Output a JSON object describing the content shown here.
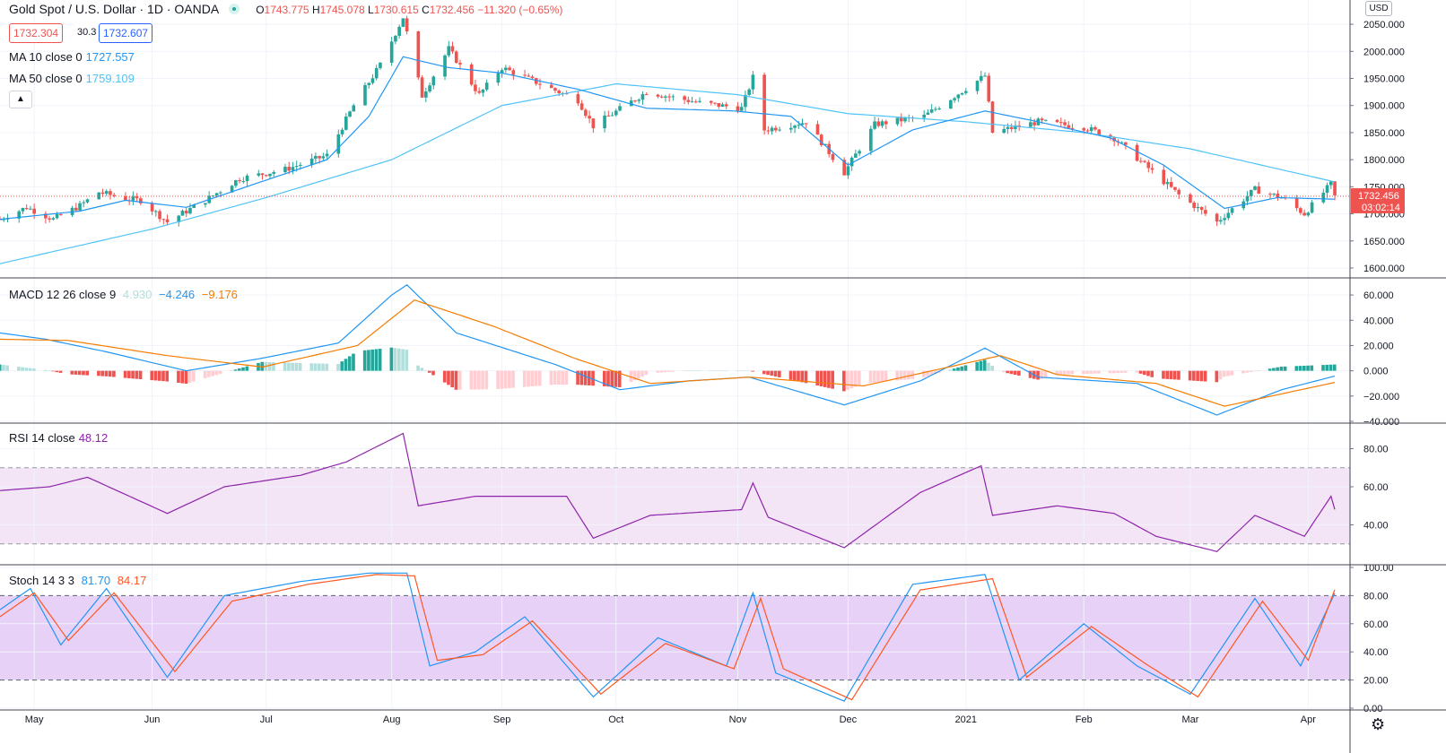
{
  "header": {
    "symbol": "Gold Spot / U.S. Dollar · 1D · OANDA",
    "open_label": "O",
    "open": "1743.775",
    "high_label": "H",
    "high": "1745.078",
    "low_label": "L",
    "low": "1730.615",
    "close_label": "C",
    "close": "1732.456",
    "change": "−11.320 (−0.65%)",
    "bid": "1732.304",
    "spread": "30.3",
    "ask": "1732.607",
    "currency": "USD",
    "countdown": "03:02:14"
  },
  "colors": {
    "up": "#26a69a",
    "down": "#ef5350",
    "ma10": "#2196f3",
    "ma50": "#4fc3f7",
    "macd": "#2196f3",
    "signal": "#f57c00",
    "rsi": "#8e24aa",
    "stochK": "#2196f3",
    "stochD": "#ff5722"
  },
  "indicators": {
    "ma10": {
      "label": "MA 10 close 0",
      "value": "1727.557"
    },
    "ma50": {
      "label": "MA 50 close 0",
      "value": "1759.109"
    },
    "macd": {
      "label": "MACD 12 26 close 9",
      "hist": "4.930",
      "macd": "−4.246",
      "signal": "−9.176"
    },
    "rsi": {
      "label": "RSI 14 close",
      "value": "48.12"
    },
    "stoch": {
      "label": "Stoch 14 3 3",
      "k": "81.70",
      "d": "84.17"
    }
  },
  "chart_data": {
    "type": "candlestick",
    "x_ticks": [
      "May",
      "Jun",
      "Jul",
      "Aug",
      "Sep",
      "Oct",
      "Nov",
      "Dec",
      "2021",
      "Feb",
      "Mar",
      "Apr"
    ],
    "x_tick_dates": [
      "2020-05-01",
      "2020-06-01",
      "2020-07-01",
      "2020-08-03",
      "2020-09-01",
      "2020-10-01",
      "2020-11-02",
      "2020-12-01",
      "2021-01-01",
      "2021-02-01",
      "2021-03-01",
      "2021-04-01"
    ],
    "x_range": [
      "2020-04-22",
      "2021-04-12"
    ],
    "last_price": 1732.456,
    "last_date": "2021-04-08",
    "price_panel": {
      "ylim": [
        1590,
        2070
      ],
      "yticks": [
        "1600.000",
        "1650.000",
        "1700.000",
        "1750.000",
        "1800.000",
        "1850.000",
        "1900.000",
        "1950.000",
        "2000.000",
        "2050.000"
      ]
    },
    "price_path": [
      [
        "2020-04-22",
        1690
      ],
      [
        "2020-04-29",
        1712
      ],
      [
        "2020-05-06",
        1690
      ],
      [
        "2020-05-13",
        1715
      ],
      [
        "2020-05-18",
        1740
      ],
      [
        "2020-05-25",
        1728
      ],
      [
        "2020-05-29",
        1725
      ],
      [
        "2020-06-05",
        1685
      ],
      [
        "2020-06-15",
        1725
      ],
      [
        "2020-06-24",
        1765
      ],
      [
        "2020-07-06",
        1782
      ],
      [
        "2020-07-17",
        1808
      ],
      [
        "2020-07-24",
        1900
      ],
      [
        "2020-07-31",
        1975
      ],
      [
        "2020-08-06",
        2063
      ],
      [
        "2020-08-11",
        1918
      ],
      [
        "2020-08-18",
        2005
      ],
      [
        "2020-08-26",
        1920
      ],
      [
        "2020-09-01",
        1970
      ],
      [
        "2020-09-11",
        1940
      ],
      [
        "2020-09-21",
        1910
      ],
      [
        "2020-09-25",
        1862
      ],
      [
        "2020-10-09",
        1925
      ],
      [
        "2020-10-23",
        1905
      ],
      [
        "2020-11-03",
        1895
      ],
      [
        "2020-11-06",
        1952
      ],
      [
        "2020-11-09",
        1855
      ],
      [
        "2020-11-20",
        1870
      ],
      [
        "2020-11-30",
        1776
      ],
      [
        "2020-12-08",
        1865
      ],
      [
        "2020-12-21",
        1880
      ],
      [
        "2021-01-06",
        1955
      ],
      [
        "2021-01-08",
        1850
      ],
      [
        "2021-01-20",
        1870
      ],
      [
        "2021-02-01",
        1860
      ],
      [
        "2021-02-09",
        1840
      ],
      [
        "2021-02-26",
        1735
      ],
      [
        "2021-03-08",
        1685
      ],
      [
        "2021-03-18",
        1745
      ],
      [
        "2021-03-25",
        1730
      ],
      [
        "2021-03-31",
        1700
      ],
      [
        "2021-04-07",
        1755
      ],
      [
        "2021-04-08",
        1732
      ]
    ],
    "ma10": [
      [
        "2020-04-22",
        1690
      ],
      [
        "2020-05-13",
        1705
      ],
      [
        "2020-05-25",
        1725
      ],
      [
        "2020-06-10",
        1712
      ],
      [
        "2020-06-30",
        1760
      ],
      [
        "2020-07-17",
        1800
      ],
      [
        "2020-07-28",
        1880
      ],
      [
        "2020-08-06",
        1990
      ],
      [
        "2020-08-18",
        1970
      ],
      [
        "2020-09-01",
        1960
      ],
      [
        "2020-09-21",
        1930
      ],
      [
        "2020-10-09",
        1895
      ],
      [
        "2020-11-01",
        1890
      ],
      [
        "2020-11-16",
        1880
      ],
      [
        "2020-12-01",
        1790
      ],
      [
        "2020-12-18",
        1855
      ],
      [
        "2021-01-06",
        1890
      ],
      [
        "2021-01-20",
        1870
      ],
      [
        "2021-02-08",
        1840
      ],
      [
        "2021-02-22",
        1790
      ],
      [
        "2021-03-10",
        1710
      ],
      [
        "2021-03-24",
        1730
      ],
      [
        "2021-04-08",
        1727
      ]
    ],
    "ma50": [
      [
        "2020-04-22",
        1608
      ],
      [
        "2020-06-01",
        1672
      ],
      [
        "2020-07-01",
        1730
      ],
      [
        "2020-08-03",
        1800
      ],
      [
        "2020-09-01",
        1900
      ],
      [
        "2020-10-01",
        1940
      ],
      [
        "2020-11-02",
        1920
      ],
      [
        "2020-12-01",
        1885
      ],
      [
        "2021-01-01",
        1870
      ],
      [
        "2021-02-01",
        1850
      ],
      [
        "2021-03-01",
        1820
      ],
      [
        "2021-04-08",
        1759
      ]
    ],
    "macd_panel": {
      "ylim": [
        -40000,
        70000
      ],
      "yticks": [
        "−40.000",
        "−20.000",
        "0.000",
        "20.000",
        "40.000",
        "60.000"
      ]
    },
    "macd": [
      [
        "2020-04-22",
        30
      ],
      [
        "2020-05-04",
        25
      ],
      [
        "2020-05-20",
        15
      ],
      [
        "2020-06-10",
        0
      ],
      [
        "2020-06-30",
        10
      ],
      [
        "2020-07-20",
        22
      ],
      [
        "2020-08-03",
        60
      ],
      [
        "2020-08-07",
        68
      ],
      [
        "2020-08-20",
        30
      ],
      [
        "2020-09-15",
        5
      ],
      [
        "2020-10-02",
        -15
      ],
      [
        "2020-10-20",
        -8
      ],
      [
        "2020-11-05",
        -5
      ],
      [
        "2020-11-30",
        -27
      ],
      [
        "2020-12-20",
        -8
      ],
      [
        "2021-01-06",
        18
      ],
      [
        "2021-01-20",
        -5
      ],
      [
        "2021-02-15",
        -10
      ],
      [
        "2021-03-08",
        -35
      ],
      [
        "2021-03-25",
        -15
      ],
      [
        "2021-04-08",
        -4.2
      ]
    ],
    "signal": [
      [
        "2020-04-22",
        25
      ],
      [
        "2020-05-10",
        24
      ],
      [
        "2020-06-05",
        12
      ],
      [
        "2020-06-30",
        3
      ],
      [
        "2020-07-25",
        20
      ],
      [
        "2020-08-09",
        56
      ],
      [
        "2020-08-30",
        35
      ],
      [
        "2020-09-20",
        10
      ],
      [
        "2020-10-10",
        -10
      ],
      [
        "2020-11-05",
        -5
      ],
      [
        "2020-12-05",
        -12
      ],
      [
        "2021-01-10",
        12
      ],
      [
        "2021-01-25",
        -3
      ],
      [
        "2021-02-20",
        -10
      ],
      [
        "2021-03-10",
        -28
      ],
      [
        "2021-04-08",
        -9.2
      ]
    ],
    "rsi_panel": {
      "ylim": [
        20,
        92
      ],
      "yticks": [
        "40.00",
        "60.00",
        "80.00"
      ],
      "bands": [
        30,
        70
      ]
    },
    "rsi": [
      [
        "2020-04-22",
        58
      ],
      [
        "2020-05-05",
        60
      ],
      [
        "2020-05-15",
        65
      ],
      [
        "2020-06-05",
        46
      ],
      [
        "2020-06-20",
        60
      ],
      [
        "2020-07-10",
        66
      ],
      [
        "2020-07-22",
        73
      ],
      [
        "2020-08-06",
        88
      ],
      [
        "2020-08-10",
        50
      ],
      [
        "2020-08-25",
        55
      ],
      [
        "2020-09-18",
        55
      ],
      [
        "2020-09-25",
        33
      ],
      [
        "2020-10-10",
        45
      ],
      [
        "2020-11-03",
        48
      ],
      [
        "2020-11-06",
        62
      ],
      [
        "2020-11-10",
        44
      ],
      [
        "2020-11-30",
        28
      ],
      [
        "2020-12-20",
        57
      ],
      [
        "2021-01-05",
        71
      ],
      [
        "2021-01-08",
        45
      ],
      [
        "2021-01-25",
        50
      ],
      [
        "2021-02-09",
        46
      ],
      [
        "2021-02-20",
        34
      ],
      [
        "2021-03-08",
        26
      ],
      [
        "2021-03-18",
        45
      ],
      [
        "2021-03-31",
        34
      ],
      [
        "2021-04-07",
        55
      ],
      [
        "2021-04-08",
        48.1
      ]
    ],
    "stoch_panel": {
      "ylim": [
        0,
        100
      ],
      "yticks": [
        "0.00",
        "20.00",
        "40.00",
        "60.00",
        "80.00",
        "100.00"
      ],
      "bands": [
        20,
        80
      ]
    },
    "stochK": [
      [
        "2020-04-22",
        70
      ],
      [
        "2020-04-30",
        85
      ],
      [
        "2020-05-08",
        45
      ],
      [
        "2020-05-20",
        85
      ],
      [
        "2020-06-05",
        22
      ],
      [
        "2020-06-20",
        80
      ],
      [
        "2020-07-10",
        90
      ],
      [
        "2020-07-28",
        96
      ],
      [
        "2020-08-07",
        96
      ],
      [
        "2020-08-13",
        30
      ],
      [
        "2020-08-25",
        40
      ],
      [
        "2020-09-07",
        65
      ],
      [
        "2020-09-25",
        8
      ],
      [
        "2020-10-12",
        50
      ],
      [
        "2020-10-30",
        30
      ],
      [
        "2020-11-06",
        82
      ],
      [
        "2020-11-12",
        25
      ],
      [
        "2020-11-30",
        5
      ],
      [
        "2020-12-18",
        88
      ],
      [
        "2021-01-06",
        95
      ],
      [
        "2021-01-15",
        20
      ],
      [
        "2021-02-01",
        60
      ],
      [
        "2021-02-15",
        30
      ],
      [
        "2021-03-01",
        10
      ],
      [
        "2021-03-18",
        78
      ],
      [
        "2021-03-30",
        30
      ],
      [
        "2021-04-08",
        81.7
      ]
    ],
    "stochD": [
      [
        "2020-04-22",
        65
      ],
      [
        "2020-05-01",
        82
      ],
      [
        "2020-05-10",
        48
      ],
      [
        "2020-05-22",
        82
      ],
      [
        "2020-06-07",
        26
      ],
      [
        "2020-06-22",
        76
      ],
      [
        "2020-07-12",
        88
      ],
      [
        "2020-07-30",
        95
      ],
      [
        "2020-08-09",
        94
      ],
      [
        "2020-08-15",
        34
      ],
      [
        "2020-08-27",
        38
      ],
      [
        "2020-09-09",
        62
      ],
      [
        "2020-09-27",
        10
      ],
      [
        "2020-10-14",
        46
      ],
      [
        "2020-11-01",
        28
      ],
      [
        "2020-11-08",
        78
      ],
      [
        "2020-11-14",
        28
      ],
      [
        "2020-12-02",
        6
      ],
      [
        "2020-12-20",
        84
      ],
      [
        "2021-01-08",
        92
      ],
      [
        "2021-01-17",
        22
      ],
      [
        "2021-02-03",
        58
      ],
      [
        "2021-02-17",
        32
      ],
      [
        "2021-03-03",
        8
      ],
      [
        "2021-03-20",
        76
      ],
      [
        "2021-04-01",
        34
      ],
      [
        "2021-04-08",
        84.2
      ]
    ]
  }
}
